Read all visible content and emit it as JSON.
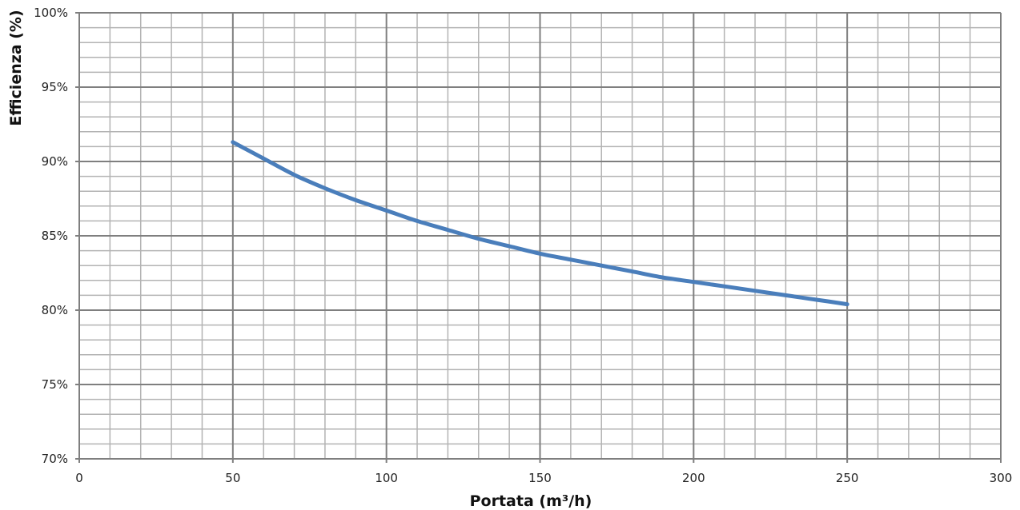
{
  "chart_data": {
    "type": "line",
    "title": "",
    "xlabel": "Portata (m³/h)",
    "ylabel": "Efficienza (%)",
    "xlim": [
      0,
      300
    ],
    "ylim": [
      70,
      100
    ],
    "x_major_ticks": [
      0,
      50,
      100,
      150,
      200,
      250,
      300
    ],
    "x_tick_labels": [
      "0",
      "50",
      "100",
      "150",
      "200",
      "250",
      "300"
    ],
    "y_major_ticks": [
      70,
      75,
      80,
      85,
      90,
      95,
      100
    ],
    "y_tick_labels": [
      "70%",
      "75%",
      "80%",
      "85%",
      "90%",
      "95%",
      "100%"
    ],
    "x_minor_step": 10,
    "y_minor_step": 1,
    "grid": true,
    "legend": "none",
    "colors": {
      "line": "#4a7ebb",
      "major_grid": "#7f7f7f",
      "minor_grid": "#b3b3b3"
    },
    "series": [
      {
        "x": [
          50,
          60,
          70,
          80,
          90,
          100,
          110,
          120,
          130,
          140,
          150,
          160,
          170,
          180,
          190,
          200,
          210,
          220,
          230,
          240,
          250
        ],
        "values": [
          91.3,
          90.2,
          89.1,
          88.2,
          87.4,
          86.7,
          86.0,
          85.4,
          84.8,
          84.3,
          83.8,
          83.4,
          83.0,
          82.6,
          82.2,
          81.9,
          81.6,
          81.3,
          81.0,
          80.7,
          80.4
        ]
      }
    ]
  }
}
